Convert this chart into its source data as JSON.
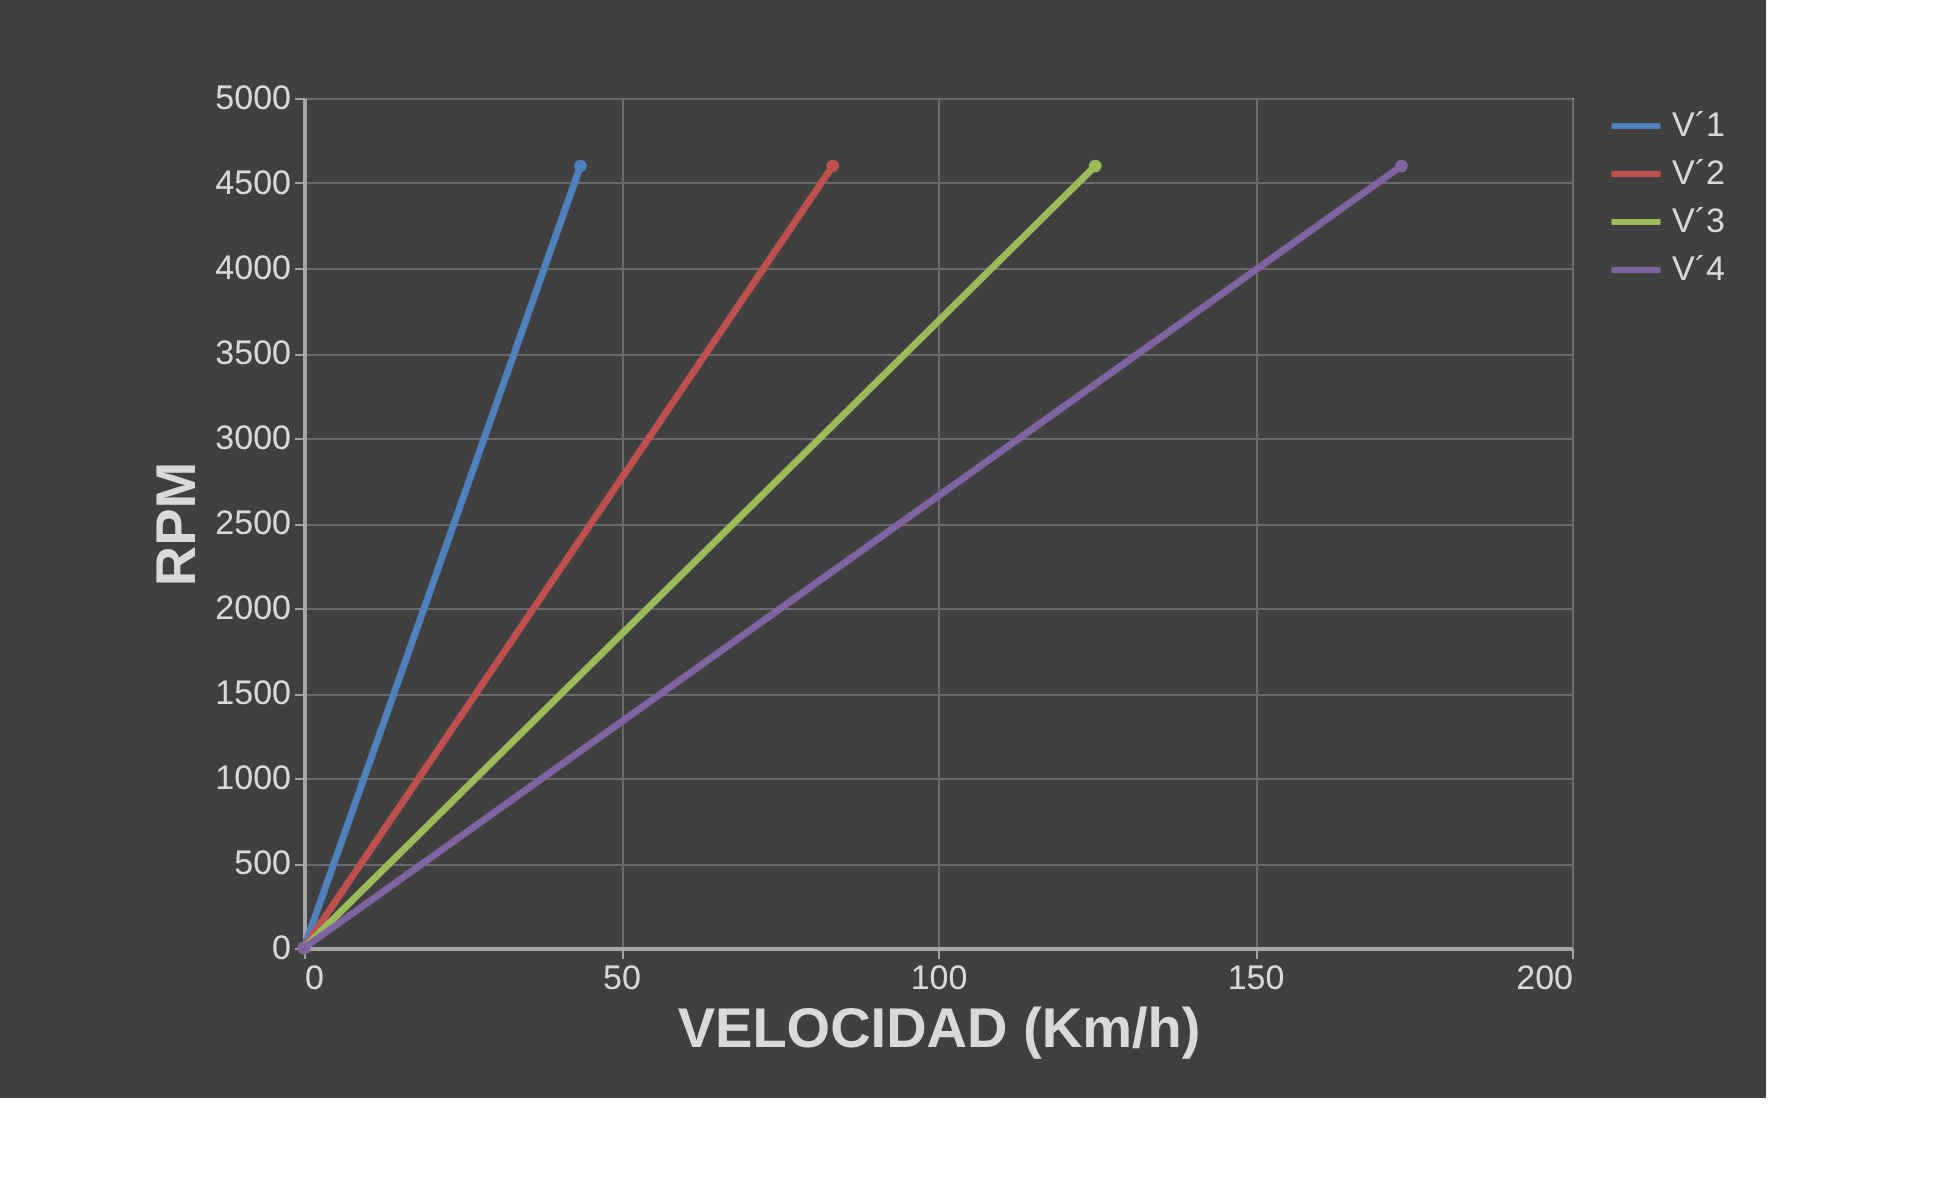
{
  "chart_data": {
    "type": "line",
    "xlabel": "VELOCIDAD (Km/h)",
    "ylabel": "RPM",
    "series": [
      {
        "name": "V´1",
        "color": "#4f81bd",
        "x": [
          0,
          43.6
        ],
        "values": [
          0,
          4600
        ]
      },
      {
        "name": "V´2",
        "color": "#c0504d",
        "x": [
          0,
          83.4
        ],
        "values": [
          0,
          4600
        ]
      },
      {
        "name": "V´3",
        "color": "#9bbb59",
        "x": [
          0,
          124.8
        ],
        "values": [
          0,
          4600
        ]
      },
      {
        "name": "V´4",
        "color": "#8064a2",
        "x": [
          0,
          173.1
        ],
        "values": [
          0,
          4600
        ]
      }
    ],
    "xlim": [
      0,
      200
    ],
    "xticks": [
      0,
      50,
      100,
      150,
      200
    ],
    "ylim": [
      0,
      5000
    ],
    "yticks": [
      0,
      500,
      1000,
      1500,
      2000,
      2500,
      3000,
      3500,
      4000,
      4500,
      5000
    ],
    "grid": true,
    "legend": "right",
    "marker": "circle",
    "line_style": "solid"
  }
}
